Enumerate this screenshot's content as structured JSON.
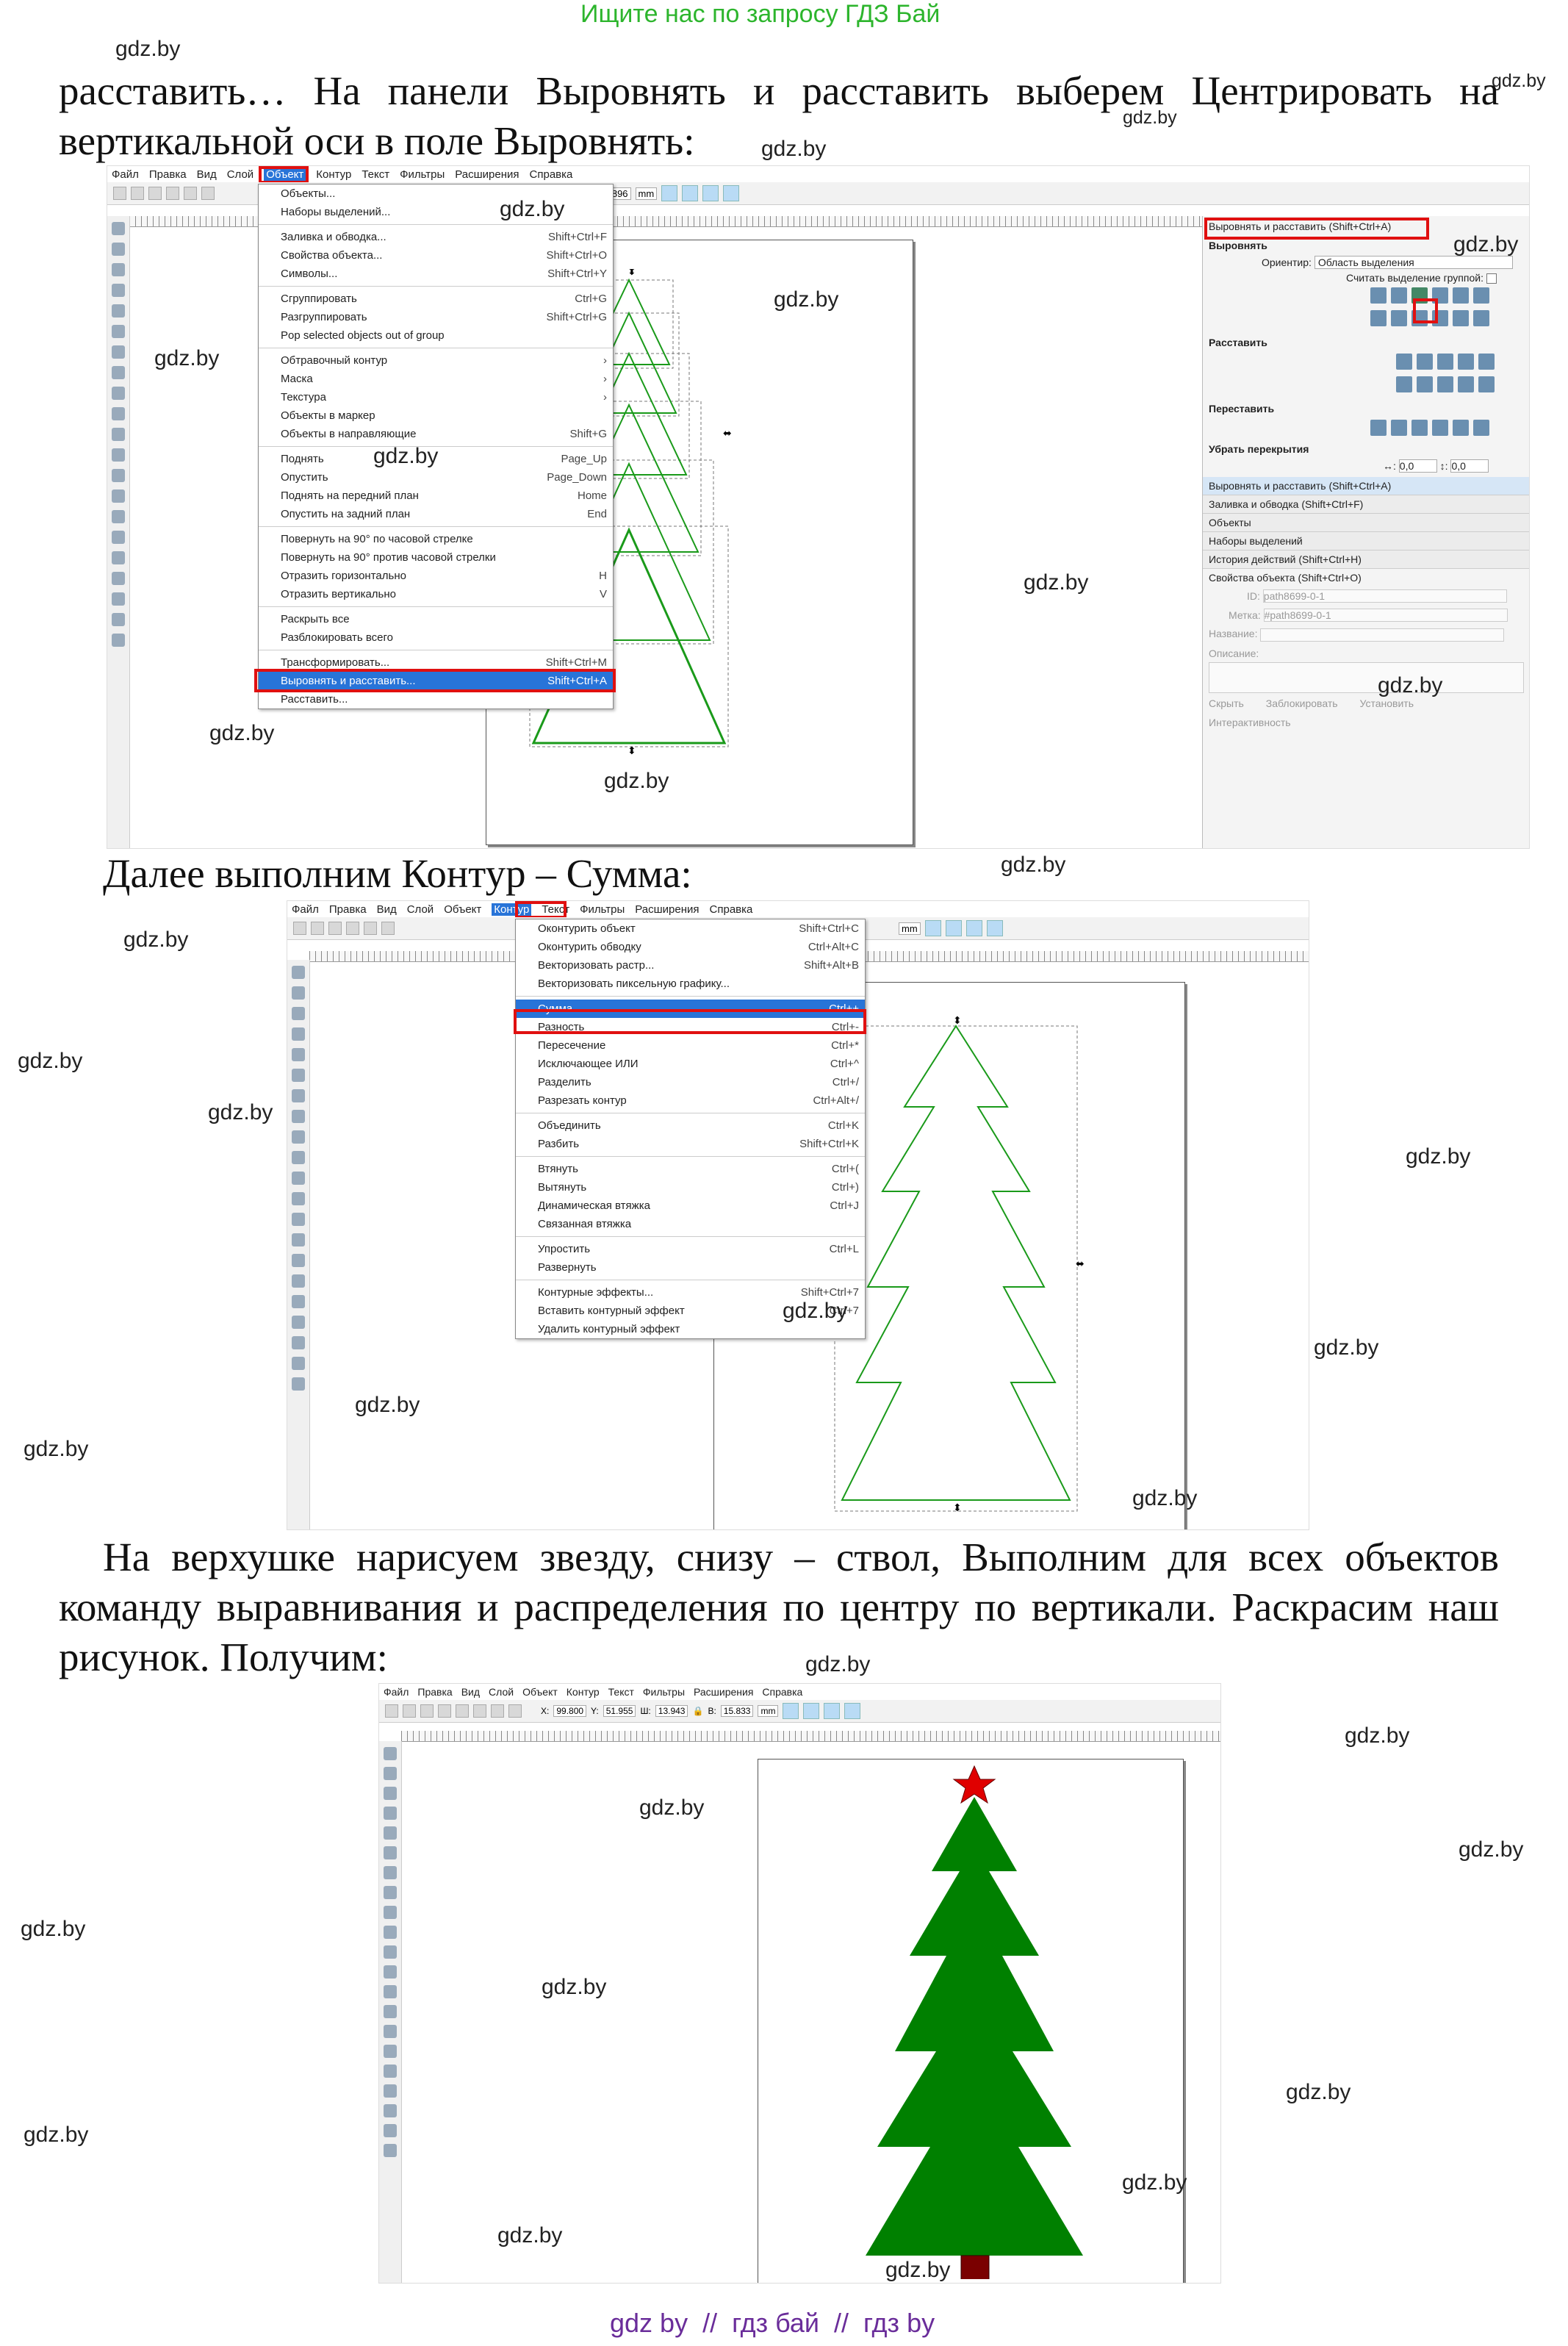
{
  "header": {
    "link": "Ищите нас по запросу ГДЗ Бай"
  },
  "paragraphs": {
    "p1": "расставить… На панели Выровнять и расставить выберем Центрировать на вертикальной оси в поле Выровнять:",
    "p2": "Далее выполним Контур – Сумма:",
    "p3": "На верхушке нарисуем звезду, снизу – ствол, Выполним для всех объектов команду выравнивания и распределения по центру по вертикали. Раскрасим наш рисунок. Получим:"
  },
  "watermark": "gdz.by",
  "footer": "gdz by  //  гдз бай  //  гдз by",
  "menubar": {
    "items": [
      "Файл",
      "Правка",
      "Вид",
      "Слой",
      "Объект",
      "Контур",
      "Текст",
      "Фильтры",
      "Расширения",
      "Справка"
    ]
  },
  "object_menu": {
    "items": [
      {
        "label": "Объекты...",
        "sc": ""
      },
      {
        "label": "Наборы выделений...",
        "sc": ""
      },
      {
        "label": "Заливка и обводка...",
        "sc": "Shift+Ctrl+F"
      },
      {
        "label": "Свойства объекта...",
        "sc": "Shift+Ctrl+O"
      },
      {
        "label": "Символы...",
        "sc": "Shift+Ctrl+Y"
      },
      {
        "label": "Сгруппировать",
        "sc": "Ctrl+G"
      },
      {
        "label": "Разгруппировать",
        "sc": "Shift+Ctrl+G"
      },
      {
        "label": "Pop selected objects out of group",
        "sc": ""
      },
      {
        "label": "Обтравочный контур",
        "sc": "›"
      },
      {
        "label": "Маска",
        "sc": "›"
      },
      {
        "label": "Текстура",
        "sc": "›"
      },
      {
        "label": "Объекты в маркер",
        "sc": ""
      },
      {
        "label": "Объекты в направляющие",
        "sc": "Shift+G"
      },
      {
        "label": "Поднять",
        "sc": "Page_Up"
      },
      {
        "label": "Опустить",
        "sc": "Page_Down"
      },
      {
        "label": "Поднять на передний план",
        "sc": "Home"
      },
      {
        "label": "Опустить на задний план",
        "sc": "End"
      },
      {
        "label": "Повернуть на 90° по часовой стрелке",
        "sc": ""
      },
      {
        "label": "Повернуть на 90° против часовой стрелки",
        "sc": ""
      },
      {
        "label": "Отразить горизонтально",
        "sc": "H"
      },
      {
        "label": "Отразить вертикально",
        "sc": "V"
      },
      {
        "label": "Раскрыть все",
        "sc": ""
      },
      {
        "label": "Разблокировать всего",
        "sc": ""
      },
      {
        "label": "Трансформировать...",
        "sc": "Shift+Ctrl+M"
      },
      {
        "label": "Выровнять и расставить...",
        "sc": "Shift+Ctrl+A"
      },
      {
        "label": "Расставить...",
        "sc": ""
      }
    ]
  },
  "align_panel": {
    "title": "Выровнять и расставить (Shift+Ctrl+A)",
    "section_align": "Выровнять",
    "orient_label": "Ориентир:",
    "orient_value": "Область выделения",
    "group_label": "Считать выделение группой:",
    "section_distribute": "Расставить",
    "section_rearrange": "Переставить",
    "section_overlap": "Убрать перекрытия",
    "h_val": "0,0",
    "v_val": "0,0",
    "docks": [
      "Выровнять и расставить (Shift+Ctrl+A)",
      "Заливка и обводка (Shift+Ctrl+F)",
      "Объекты",
      "Наборы выделений",
      "История действий (Shift+Ctrl+H)"
    ],
    "props_title": "Свойства объекта (Shift+Ctrl+O)",
    "id_label": "ID:",
    "id_value": "path8699-0-1",
    "label_label": "Метка:",
    "label_value": "#path8699-0-1",
    "name_label": "Название:",
    "desc_label": "Описание:",
    "hide": "Скрыть",
    "lock": "Заблокировать",
    "set": "Установить",
    "interactivity": "Интерактивность"
  },
  "path_menu": {
    "items": [
      {
        "label": "Оконтурить объект",
        "sc": "Shift+Ctrl+C"
      },
      {
        "label": "Оконтурить обводку",
        "sc": "Ctrl+Alt+C"
      },
      {
        "label": "Векторизовать растр...",
        "sc": "Shift+Alt+B"
      },
      {
        "label": "Векторизовать пиксельную графику...",
        "sc": ""
      },
      {
        "label": "Сумма",
        "sc": "Ctrl++"
      },
      {
        "label": "Разность",
        "sc": "Ctrl+-"
      },
      {
        "label": "Пересечение",
        "sc": "Ctrl+*"
      },
      {
        "label": "Исключающее ИЛИ",
        "sc": "Ctrl+^"
      },
      {
        "label": "Разделить",
        "sc": "Ctrl+/"
      },
      {
        "label": "Разрезать контур",
        "sc": "Ctrl+Alt+/"
      },
      {
        "label": "Объединить",
        "sc": "Ctrl+K"
      },
      {
        "label": "Разбить",
        "sc": "Shift+Ctrl+K"
      },
      {
        "label": "Втянуть",
        "sc": "Ctrl+("
      },
      {
        "label": "Вытянуть",
        "sc": "Ctrl+)"
      },
      {
        "label": "Динамическая втяжка",
        "sc": "Ctrl+J"
      },
      {
        "label": "Связанная втяжка",
        "sc": ""
      },
      {
        "label": "Упростить",
        "sc": "Ctrl+L"
      },
      {
        "label": "Развернуть",
        "sc": ""
      },
      {
        "label": "Контурные эффекты...",
        "sc": "Shift+Ctrl+7"
      },
      {
        "label": "Вставить контурный эффект",
        "sc": "Ctrl+7"
      },
      {
        "label": "Удалить контурный эффект",
        "sc": ""
      }
    ]
  },
  "shot3_toolbar": {
    "x": "99.800",
    "y": "51.955",
    "w": "13.943",
    "h": "15.833",
    "unit": "mm"
  },
  "shot1_toolbar": {
    "value": "3.896",
    "unit": "mm"
  },
  "colors": {
    "tree": "#008000",
    "star": "#e00000",
    "trunk": "#7a0000",
    "outline": "#1a9a1a",
    "select": "#2874d8",
    "highlight": "#e01010"
  }
}
